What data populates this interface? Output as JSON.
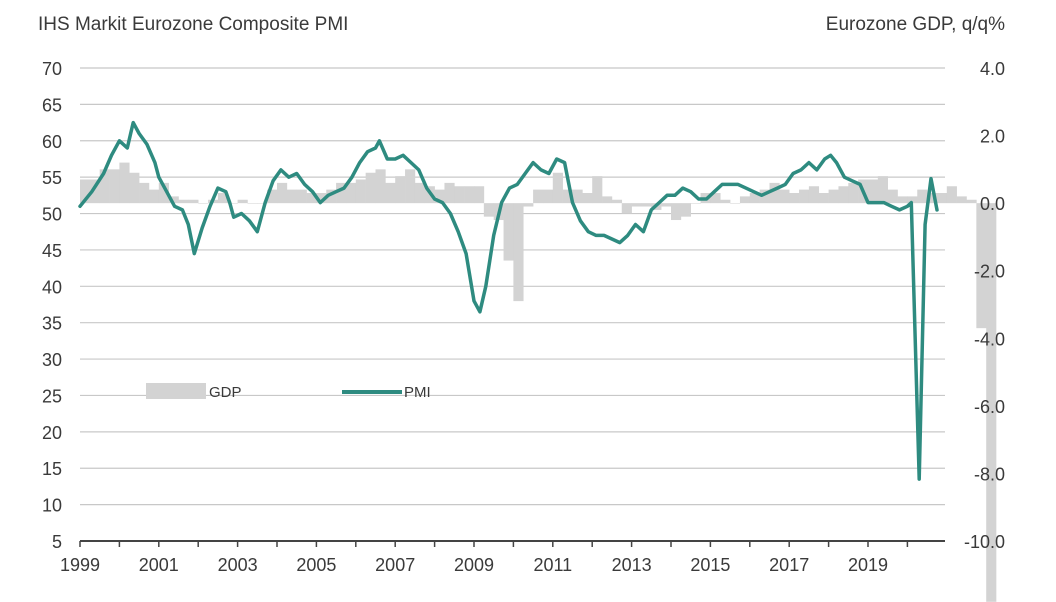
{
  "chart_data": {
    "type": "line+bar",
    "title_left": "IHS Markit Eurozone Composite PMI",
    "title_right": "Eurozone GDP, q/q%",
    "left_axis": {
      "ylim": [
        5,
        70
      ],
      "ticks": [
        "70",
        "65",
        "60",
        "55",
        "50",
        "45",
        "40",
        "35",
        "30",
        "25",
        "20",
        "15",
        "10",
        "5"
      ]
    },
    "right_axis": {
      "ylim": [
        -10.0,
        4.0
      ],
      "ticks": [
        "4.0",
        "2.0",
        "0.0",
        "-2.0",
        "-4.0",
        "-6.0",
        "-8.0",
        "-10.0"
      ]
    },
    "x_axis": {
      "range": [
        1999,
        2020.9
      ],
      "ticks": [
        "1999",
        "2001",
        "2003",
        "2005",
        "2007",
        "2009",
        "2011",
        "2013",
        "2015",
        "2017",
        "2019"
      ]
    },
    "grid": true,
    "legend": {
      "position": "center-left",
      "items": [
        {
          "label": "GDP",
          "type": "bar"
        },
        {
          "label": "PMI",
          "type": "line"
        }
      ]
    },
    "colors": {
      "pmi": "#2e8b80",
      "gdp": "#d3d3d3",
      "grid": "#c8c8c8",
      "axis": "#444444"
    },
    "series": [
      {
        "name": "PMI",
        "axis": "left",
        "x": [
          1999.0,
          1999.3,
          1999.6,
          1999.8,
          2000.0,
          2000.2,
          2000.35,
          2000.5,
          2000.7,
          2000.9,
          2001.0,
          2001.2,
          2001.4,
          2001.6,
          2001.75,
          2001.9,
          2002.1,
          2002.3,
          2002.5,
          2002.7,
          2002.8,
          2002.9,
          2003.1,
          2003.3,
          2003.5,
          2003.7,
          2003.9,
          2004.1,
          2004.3,
          2004.5,
          2004.7,
          2004.9,
          2005.1,
          2005.3,
          2005.5,
          2005.7,
          2005.9,
          2006.1,
          2006.3,
          2006.5,
          2006.6,
          2006.8,
          2007.0,
          2007.2,
          2007.4,
          2007.6,
          2007.8,
          2008.0,
          2008.2,
          2008.4,
          2008.6,
          2008.8,
          2009.0,
          2009.15,
          2009.3,
          2009.5,
          2009.7,
          2009.9,
          2010.1,
          2010.3,
          2010.5,
          2010.7,
          2010.9,
          2011.1,
          2011.3,
          2011.5,
          2011.7,
          2011.9,
          2012.1,
          2012.3,
          2012.5,
          2012.7,
          2012.9,
          2013.1,
          2013.3,
          2013.5,
          2013.7,
          2013.9,
          2014.1,
          2014.3,
          2014.5,
          2014.7,
          2014.9,
          2015.1,
          2015.3,
          2015.5,
          2015.7,
          2015.9,
          2016.1,
          2016.3,
          2016.5,
          2016.7,
          2016.9,
          2017.1,
          2017.3,
          2017.5,
          2017.7,
          2017.9,
          2018.05,
          2018.2,
          2018.4,
          2018.6,
          2018.8,
          2019.0,
          2019.2,
          2019.4,
          2019.6,
          2019.8,
          2020.0,
          2020.1,
          2020.3,
          2020.45,
          2020.6,
          2020.75
        ],
        "values": [
          51.0,
          53.0,
          55.5,
          58.0,
          60.0,
          59.0,
          62.5,
          61.0,
          59.5,
          57.0,
          55.0,
          53.0,
          51.0,
          50.5,
          48.5,
          44.5,
          48.0,
          51.0,
          53.5,
          53.0,
          51.5,
          49.5,
          50.0,
          49.0,
          47.5,
          51.5,
          54.5,
          56.0,
          55.0,
          55.5,
          54.0,
          53.0,
          51.5,
          52.5,
          53.0,
          53.5,
          55.0,
          57.0,
          58.5,
          59.0,
          60.0,
          57.5,
          57.5,
          58.0,
          57.0,
          56.0,
          53.5,
          52.0,
          51.5,
          50.0,
          47.5,
          44.5,
          38.0,
          36.5,
          40.0,
          47.0,
          51.5,
          53.5,
          54.0,
          55.5,
          57.0,
          56.0,
          55.5,
          57.5,
          57.0,
          51.5,
          49.0,
          47.5,
          47.0,
          47.0,
          46.5,
          46.0,
          47.0,
          48.5,
          47.5,
          50.5,
          51.5,
          52.5,
          52.5,
          53.5,
          53.0,
          52.0,
          52.0,
          53.0,
          54.0,
          54.0,
          54.0,
          53.5,
          53.0,
          52.5,
          53.0,
          53.5,
          54.0,
          55.5,
          56.0,
          57.0,
          56.0,
          57.5,
          58.0,
          57.0,
          55.0,
          54.5,
          54.0,
          51.5,
          51.5,
          51.5,
          51.0,
          50.5,
          51.0,
          51.5,
          13.5,
          48.5,
          54.8,
          50.5
        ],
        "color": "#2e8b80"
      },
      {
        "name": "GDP",
        "axis": "right",
        "quarters_start": 1999.0,
        "quarter_step": 0.25,
        "values": [
          0.7,
          0.7,
          1.0,
          1.0,
          1.2,
          0.9,
          0.6,
          0.4,
          0.6,
          0.2,
          0.1,
          0.1,
          0.0,
          0.1,
          0.3,
          0.0,
          0.1,
          0.0,
          0.0,
          0.4,
          0.6,
          0.4,
          0.4,
          0.3,
          0.3,
          0.4,
          0.6,
          0.6,
          0.7,
          0.9,
          1.0,
          0.6,
          0.8,
          1.0,
          0.6,
          0.5,
          0.4,
          0.6,
          0.5,
          0.5,
          0.5,
          -0.4,
          -0.5,
          -1.7,
          -2.9,
          -0.1,
          0.4,
          0.4,
          0.9,
          0.4,
          0.4,
          0.3,
          0.8,
          0.2,
          0.1,
          -0.3,
          -0.1,
          -0.1,
          -0.2,
          -0.1,
          -0.5,
          -0.4,
          0.0,
          0.3,
          0.3,
          0.1,
          0.0,
          0.2,
          0.3,
          0.4,
          0.6,
          0.4,
          0.3,
          0.4,
          0.5,
          0.3,
          0.4,
          0.5,
          0.6,
          0.7,
          0.7,
          0.8,
          0.4,
          0.2,
          0.2,
          0.4,
          0.3,
          0.3,
          0.5,
          0.2,
          0.1,
          -3.7,
          -11.8
        ],
        "color": "#d3d3d3"
      }
    ]
  }
}
